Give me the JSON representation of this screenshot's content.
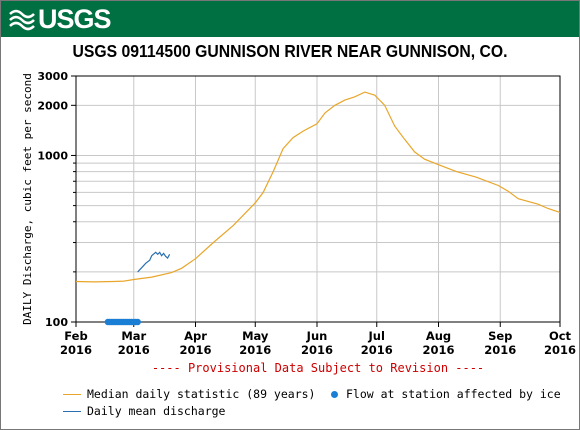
{
  "header": {
    "logo_text": "USGS",
    "title": "USGS 09114500 GUNNISON RIVER NEAR GUNNISON, CO."
  },
  "chart_data": {
    "type": "line",
    "ylabel": "DAILY Discharge, cubic feet per second",
    "y_scale": "log",
    "ylim": [
      100,
      3000
    ],
    "y_tick_labels": [
      "100",
      "1000",
      "2000",
      "3000"
    ],
    "x_tick_labels": [
      [
        "Feb",
        "2016"
      ],
      [
        "Mar",
        "2016"
      ],
      [
        "Apr",
        "2016"
      ],
      [
        "May",
        "2016"
      ],
      [
        "Jun",
        "2016"
      ],
      [
        "Jul",
        "2016"
      ],
      [
        "Aug",
        "2016"
      ],
      [
        "Sep",
        "2016"
      ],
      [
        "Oct",
        "2016"
      ]
    ],
    "xlim": [
      "2016-02-01",
      "2016-10-01"
    ],
    "grid": true,
    "annotation": "---- Provisional Data Subject to Revision ----",
    "colors": {
      "median": "#e8a62a",
      "daily": "#2b6fb0",
      "ice": "#1a7fd4",
      "annotation": "#cc0000"
    },
    "series": [
      {
        "name": "Median daily statistic (89 years)",
        "points": [
          [
            "2016-02-01",
            175
          ],
          [
            "2016-02-10",
            174
          ],
          [
            "2016-02-20",
            175
          ],
          [
            "2016-02-25",
            176
          ],
          [
            "2016-03-01",
            180
          ],
          [
            "2016-03-10",
            186
          ],
          [
            "2016-03-20",
            198
          ],
          [
            "2016-03-25",
            210
          ],
          [
            "2016-04-01",
            240
          ],
          [
            "2016-04-10",
            300
          ],
          [
            "2016-04-20",
            380
          ],
          [
            "2016-05-01",
            520
          ],
          [
            "2016-05-05",
            600
          ],
          [
            "2016-05-10",
            800
          ],
          [
            "2016-05-15",
            1100
          ],
          [
            "2016-05-20",
            1280
          ],
          [
            "2016-05-25",
            1400
          ],
          [
            "2016-06-01",
            1550
          ],
          [
            "2016-06-05",
            1800
          ],
          [
            "2016-06-10",
            2000
          ],
          [
            "2016-06-15",
            2150
          ],
          [
            "2016-06-20",
            2250
          ],
          [
            "2016-06-25",
            2400
          ],
          [
            "2016-06-30",
            2300
          ],
          [
            "2016-07-05",
            2000
          ],
          [
            "2016-07-10",
            1500
          ],
          [
            "2016-07-15",
            1250
          ],
          [
            "2016-07-20",
            1050
          ],
          [
            "2016-07-25",
            950
          ],
          [
            "2016-08-01",
            880
          ],
          [
            "2016-08-10",
            800
          ],
          [
            "2016-08-20",
            740
          ],
          [
            "2016-08-31",
            660
          ],
          [
            "2016-09-05",
            610
          ],
          [
            "2016-09-10",
            550
          ],
          [
            "2016-09-20",
            510
          ],
          [
            "2016-09-25",
            480
          ],
          [
            "2016-10-01",
            455
          ]
        ]
      },
      {
        "name": "Daily mean discharge",
        "points": [
          [
            "2016-03-03",
            200
          ],
          [
            "2016-03-05",
            212
          ],
          [
            "2016-03-07",
            225
          ],
          [
            "2016-03-09",
            235
          ],
          [
            "2016-03-10",
            250
          ],
          [
            "2016-03-12",
            262
          ],
          [
            "2016-03-13",
            255
          ],
          [
            "2016-03-14",
            262
          ],
          [
            "2016-03-15",
            250
          ],
          [
            "2016-03-16",
            258
          ],
          [
            "2016-03-17",
            248
          ],
          [
            "2016-03-18",
            242
          ],
          [
            "2016-03-19",
            255
          ]
        ]
      },
      {
        "name": "Flow at station affected by ice",
        "marker": "dot",
        "points_y": 100,
        "dates": [
          "2016-02-17",
          "2016-02-18",
          "2016-02-19",
          "2016-02-20",
          "2016-02-21",
          "2016-02-22",
          "2016-02-23",
          "2016-02-24",
          "2016-02-25",
          "2016-02-26",
          "2016-02-27",
          "2016-02-28",
          "2016-02-29",
          "2016-03-01",
          "2016-03-02",
          "2016-03-03"
        ]
      }
    ]
  },
  "legend": {
    "median_label": "Median daily statistic (89 years)",
    "ice_label": "Flow at station affected by ice",
    "daily_label": "Daily mean discharge"
  }
}
